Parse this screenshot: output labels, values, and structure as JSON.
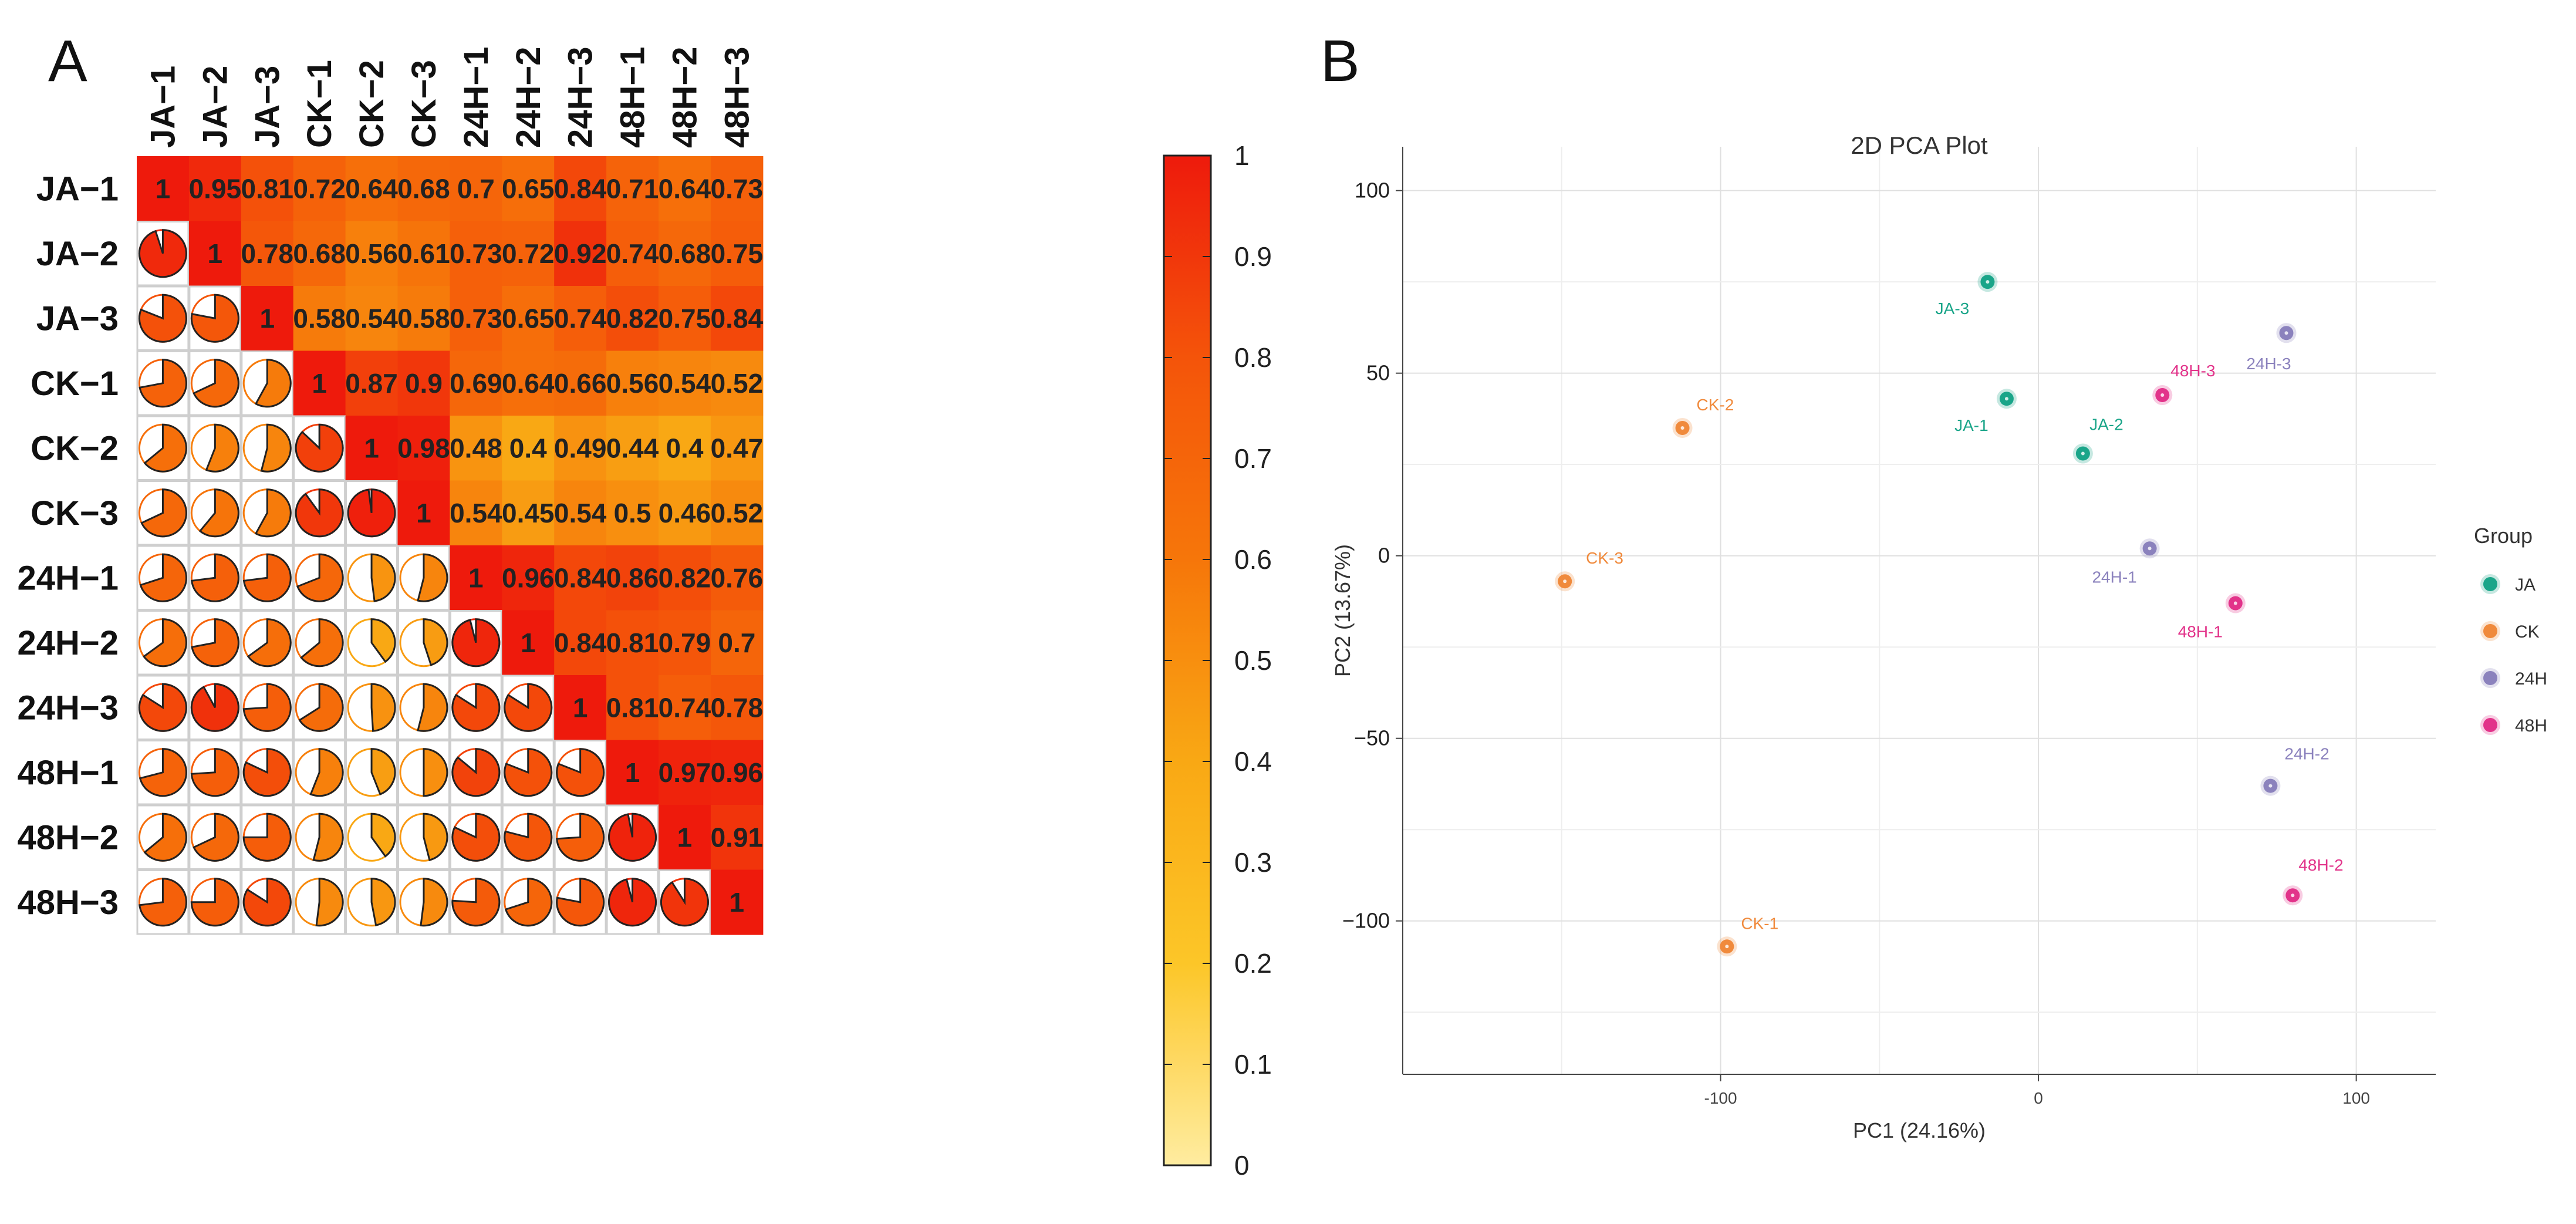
{
  "panels": {
    "a_letter": "A",
    "b_letter": "B"
  },
  "chart_data": [
    {
      "type": "heatmap",
      "subtype": "correlation-matrix-upper-values-lower-pies",
      "labels": [
        "JA−1",
        "JA−2",
        "JA−3",
        "CK−1",
        "CK−2",
        "CK−3",
        "24H−1",
        "24H−2",
        "24H−3",
        "48H−1",
        "48H−2",
        "48H−3"
      ],
      "matrix": [
        [
          1,
          0.95,
          0.81,
          0.72,
          0.64,
          0.68,
          0.7,
          0.65,
          0.84,
          0.71,
          0.64,
          0.73
        ],
        [
          0.95,
          1,
          0.78,
          0.68,
          0.56,
          0.61,
          0.73,
          0.72,
          0.92,
          0.74,
          0.68,
          0.75
        ],
        [
          0.81,
          0.78,
          1,
          0.58,
          0.54,
          0.58,
          0.73,
          0.65,
          0.74,
          0.82,
          0.75,
          0.84
        ],
        [
          0.72,
          0.68,
          0.58,
          1,
          0.87,
          0.9,
          0.69,
          0.64,
          0.66,
          0.56,
          0.54,
          0.52
        ],
        [
          0.64,
          0.56,
          0.54,
          0.87,
          1,
          0.98,
          0.48,
          0.4,
          0.49,
          0.44,
          0.4,
          0.47
        ],
        [
          0.68,
          0.61,
          0.58,
          0.9,
          0.98,
          1,
          0.54,
          0.45,
          0.54,
          0.5,
          0.46,
          0.52
        ],
        [
          0.7,
          0.73,
          0.73,
          0.69,
          0.48,
          0.54,
          1,
          0.96,
          0.84,
          0.86,
          0.82,
          0.76
        ],
        [
          0.65,
          0.72,
          0.65,
          0.64,
          0.4,
          0.45,
          0.96,
          1,
          0.84,
          0.81,
          0.79,
          0.7
        ],
        [
          0.84,
          0.92,
          0.74,
          0.66,
          0.49,
          0.54,
          0.84,
          0.84,
          1,
          0.81,
          0.74,
          0.78
        ],
        [
          0.71,
          0.74,
          0.82,
          0.56,
          0.44,
          0.5,
          0.86,
          0.81,
          0.81,
          1,
          0.97,
          0.96
        ],
        [
          0.64,
          0.68,
          0.75,
          0.54,
          0.4,
          0.46,
          0.82,
          0.79,
          0.74,
          0.97,
          1,
          0.91
        ],
        [
          0.73,
          0.75,
          0.84,
          0.52,
          0.47,
          0.52,
          0.76,
          0.7,
          0.78,
          0.96,
          0.91,
          1
        ]
      ],
      "colorbar": {
        "range": [
          0,
          1
        ],
        "ticks": [
          "0",
          "0.1",
          "0.2",
          "0.3",
          "0.4",
          "0.5",
          "0.6",
          "0.7",
          "0.8",
          "0.9",
          "1"
        ]
      }
    },
    {
      "type": "scatter",
      "title": "2D PCA Plot",
      "xlabel": "PC1 (24.16%)",
      "ylabel": "PC2 (13.67%)",
      "xlim": [
        -200,
        125
      ],
      "ylim": [
        -142,
        112
      ],
      "xticks": [
        -100,
        0,
        100
      ],
      "yticks": [
        100,
        50,
        0,
        -50,
        -100
      ],
      "xtick_labels": [
        "-100",
        "0",
        "100"
      ],
      "ytick_labels": [
        "100",
        "50",
        "0",
        "−50",
        "−100"
      ],
      "legend": {
        "title": "Group",
        "position": "right",
        "entries": [
          "JA",
          "CK",
          "24H",
          "48H"
        ]
      },
      "group_colors": {
        "JA": "#1aa589",
        "CK": "#f08a3c",
        "24H": "#8b82bd",
        "48H": "#e2338a"
      },
      "points": [
        {
          "label": "JA-1",
          "group": "JA",
          "x": -10,
          "y": 43
        },
        {
          "label": "JA-2",
          "group": "JA",
          "x": 14,
          "y": 28
        },
        {
          "label": "JA-3",
          "group": "JA",
          "x": -16,
          "y": 75
        },
        {
          "label": "CK-1",
          "group": "CK",
          "x": -98,
          "y": -107
        },
        {
          "label": "CK-2",
          "group": "CK",
          "x": -112,
          "y": 35
        },
        {
          "label": "CK-3",
          "group": "CK",
          "x": -149,
          "y": -7
        },
        {
          "label": "24H-1",
          "group": "24H",
          "x": 35,
          "y": 2
        },
        {
          "label": "24H-2",
          "group": "24H",
          "x": 73,
          "y": -63
        },
        {
          "label": "24H-3",
          "group": "24H",
          "x": 78,
          "y": 61
        },
        {
          "label": "48H-1",
          "group": "48H",
          "x": 62,
          "y": -13
        },
        {
          "label": "48H-2",
          "group": "48H",
          "x": 80,
          "y": -93
        },
        {
          "label": "48H-3",
          "group": "48H",
          "x": 39,
          "y": 44
        }
      ]
    }
  ]
}
